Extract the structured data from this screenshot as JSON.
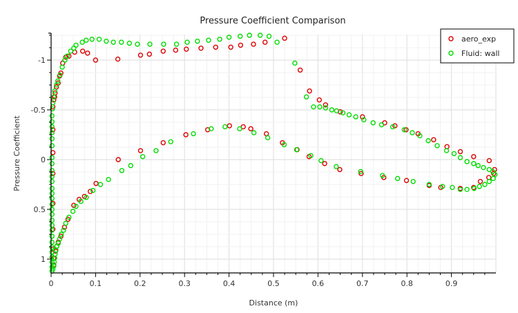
{
  "chart_data": {
    "type": "scatter",
    "title": "Pressure Coefficient Comparison",
    "xlabel": "Distance (m)",
    "ylabel": "Pressure Coefficient",
    "xlim": [
      0,
      1.0
    ],
    "ylim": [
      -1.257,
      1.139
    ],
    "y_inverted": true,
    "grid": true,
    "legend_position": "top-right",
    "x_ticks": [
      0,
      0.1,
      0.2,
      0.3,
      0.4,
      0.5,
      0.6,
      0.7,
      0.8,
      0.9
    ],
    "x_tick_labels": [
      "0",
      "0.1",
      "0.2",
      "0.3",
      "0.4",
      "0.5",
      "0.6",
      "0.7",
      "0.8",
      "0.9"
    ],
    "y_ticks": [
      -1,
      -0.5,
      0,
      0.5,
      1
    ],
    "y_tick_labels": [
      "-1",
      "-0.5",
      "0",
      "0.5",
      "1"
    ],
    "series": [
      {
        "name": "aero_exp",
        "color": "#dd0000",
        "marker": "open-circle",
        "points": [
          [
            0.006,
            1.06
          ],
          [
            0.006,
            0.99
          ],
          [
            0.01,
            0.92
          ],
          [
            0.013,
            0.87
          ],
          [
            0.016,
            0.83
          ],
          [
            0.022,
            0.77
          ],
          [
            0.03,
            0.68
          ],
          [
            0.038,
            0.6
          ],
          [
            0.051,
            0.46
          ],
          [
            0.063,
            0.4
          ],
          [
            0.075,
            0.37
          ],
          [
            0.088,
            0.32
          ],
          [
            0.101,
            0.24
          ],
          [
            0.151,
            0.0
          ],
          [
            0.201,
            -0.09
          ],
          [
            0.252,
            -0.17
          ],
          [
            0.303,
            -0.25
          ],
          [
            0.352,
            -0.3
          ],
          [
            0.401,
            -0.34
          ],
          [
            0.432,
            -0.33
          ],
          [
            0.449,
            -0.31
          ],
          [
            0.484,
            -0.26
          ],
          [
            0.52,
            -0.17
          ],
          [
            0.553,
            -0.1
          ],
          [
            0.58,
            -0.03
          ],
          [
            0.615,
            0.04
          ],
          [
            0.649,
            0.1
          ],
          [
            0.697,
            0.14
          ],
          [
            0.748,
            0.18
          ],
          [
            0.799,
            0.21
          ],
          [
            0.85,
            0.26
          ],
          [
            0.876,
            0.28
          ],
          [
            0.92,
            0.29
          ],
          [
            0.95,
            0.28
          ],
          [
            0.965,
            0.22
          ],
          [
            0.984,
            0.18
          ],
          [
            0.995,
            0.14
          ],
          [
            0.004,
            0.9
          ],
          [
            0.004,
            0.7
          ],
          [
            0.004,
            0.44
          ],
          [
            0.004,
            0.14
          ],
          [
            0.004,
            -0.07
          ],
          [
            0.004,
            -0.3
          ],
          [
            0.004,
            -0.53
          ],
          [
            0.006,
            -0.6
          ],
          [
            0.008,
            -0.63
          ],
          [
            0.009,
            -0.67
          ],
          [
            0.012,
            -0.73
          ],
          [
            0.016,
            -0.77
          ],
          [
            0.019,
            -0.84
          ],
          [
            0.022,
            -0.87
          ],
          [
            0.026,
            -0.97
          ],
          [
            0.033,
            -1.03
          ],
          [
            0.04,
            -1.04
          ],
          [
            0.053,
            -1.08
          ],
          [
            0.071,
            -1.09
          ],
          [
            0.082,
            -1.07
          ],
          [
            0.1,
            -1.0
          ],
          [
            0.15,
            -1.01
          ],
          [
            0.201,
            -1.05
          ],
          [
            0.221,
            -1.06
          ],
          [
            0.252,
            -1.09
          ],
          [
            0.28,
            -1.1
          ],
          [
            0.304,
            -1.11
          ],
          [
            0.337,
            -1.12
          ],
          [
            0.37,
            -1.13
          ],
          [
            0.404,
            -1.13
          ],
          [
            0.426,
            -1.15
          ],
          [
            0.455,
            -1.16
          ],
          [
            0.481,
            -1.18
          ],
          [
            0.525,
            -1.22
          ],
          [
            0.56,
            -0.9
          ],
          [
            0.581,
            -0.69
          ],
          [
            0.603,
            -0.6
          ],
          [
            0.617,
            -0.55
          ],
          [
            0.65,
            -0.48
          ],
          [
            0.7,
            -0.43
          ],
          [
            0.75,
            -0.37
          ],
          [
            0.773,
            -0.34
          ],
          [
            0.798,
            -0.3
          ],
          [
            0.825,
            -0.26
          ],
          [
            0.86,
            -0.2
          ],
          [
            0.89,
            -0.13
          ],
          [
            0.92,
            -0.08
          ],
          [
            0.95,
            -0.03
          ],
          [
            0.985,
            0.01
          ],
          [
            0.997,
            0.1
          ]
        ]
      },
      {
        "name": "Fluid: wall",
        "color": "#00dd00",
        "marker": "open-circle",
        "points": [
          [
            0.002,
            -0.02
          ],
          [
            0.002,
            0.04
          ],
          [
            0.002,
            0.11
          ],
          [
            0.002,
            0.17
          ],
          [
            0.002,
            0.22
          ],
          [
            0.002,
            0.29
          ],
          [
            0.002,
            0.34
          ],
          [
            0.002,
            0.39
          ],
          [
            0.002,
            0.45
          ],
          [
            0.002,
            0.5
          ],
          [
            0.002,
            0.55
          ],
          [
            0.002,
            0.61
          ],
          [
            0.002,
            0.66
          ],
          [
            0.002,
            0.71
          ],
          [
            0.002,
            0.77
          ],
          [
            0.002,
            0.83
          ],
          [
            0.002,
            0.88
          ],
          [
            0.002,
            0.93
          ],
          [
            0.002,
            0.98
          ],
          [
            0.002,
            1.03
          ],
          [
            0.002,
            1.08
          ],
          [
            0.002,
            1.12
          ],
          [
            0.004,
            1.1
          ],
          [
            0.006,
            1.07
          ],
          [
            0.007,
            1.03
          ],
          [
            0.008,
            0.99
          ],
          [
            0.009,
            0.95
          ],
          [
            0.011,
            0.91
          ],
          [
            0.013,
            0.87
          ],
          [
            0.016,
            0.84
          ],
          [
            0.019,
            0.8
          ],
          [
            0.023,
            0.75
          ],
          [
            0.028,
            0.71
          ],
          [
            0.033,
            0.64
          ],
          [
            0.04,
            0.58
          ],
          [
            0.049,
            0.52
          ],
          [
            0.056,
            0.47
          ],
          [
            0.067,
            0.42
          ],
          [
            0.079,
            0.38
          ],
          [
            0.094,
            0.31
          ],
          [
            0.111,
            0.25
          ],
          [
            0.129,
            0.2
          ],
          [
            0.159,
            0.11
          ],
          [
            0.179,
            0.06
          ],
          [
            0.206,
            -0.03
          ],
          [
            0.236,
            -0.09
          ],
          [
            0.269,
            -0.18
          ],
          [
            0.32,
            -0.26
          ],
          [
            0.36,
            -0.31
          ],
          [
            0.391,
            -0.33
          ],
          [
            0.424,
            -0.31
          ],
          [
            0.456,
            -0.27
          ],
          [
            0.487,
            -0.22
          ],
          [
            0.524,
            -0.15
          ],
          [
            0.552,
            -0.1
          ],
          [
            0.584,
            -0.04
          ],
          [
            0.607,
            0.01
          ],
          [
            0.641,
            0.07
          ],
          [
            0.696,
            0.12
          ],
          [
            0.745,
            0.16
          ],
          [
            0.779,
            0.19
          ],
          [
            0.814,
            0.22
          ],
          [
            0.85,
            0.25
          ],
          [
            0.88,
            0.27
          ],
          [
            0.902,
            0.28
          ],
          [
            0.92,
            0.3
          ],
          [
            0.935,
            0.3
          ],
          [
            0.951,
            0.29
          ],
          [
            0.963,
            0.27
          ],
          [
            0.975,
            0.25
          ],
          [
            0.985,
            0.22
          ],
          [
            0.994,
            0.19
          ],
          [
            0.998,
            0.15
          ],
          [
            0.002,
            -0.14
          ],
          [
            0.002,
            -0.21
          ],
          [
            0.002,
            -0.27
          ],
          [
            0.002,
            -0.33
          ],
          [
            0.002,
            -0.38
          ],
          [
            0.002,
            -0.44
          ],
          [
            0.003,
            -0.51
          ],
          [
            0.004,
            -0.57
          ],
          [
            0.006,
            -0.63
          ],
          [
            0.008,
            -0.69
          ],
          [
            0.012,
            -0.75
          ],
          [
            0.015,
            -0.79
          ],
          [
            0.02,
            -0.85
          ],
          [
            0.025,
            -0.93
          ],
          [
            0.031,
            -1.0
          ],
          [
            0.036,
            -1.04
          ],
          [
            0.044,
            -1.09
          ],
          [
            0.051,
            -1.12
          ],
          [
            0.056,
            -1.15
          ],
          [
            0.07,
            -1.18
          ],
          [
            0.079,
            -1.2
          ],
          [
            0.092,
            -1.21
          ],
          [
            0.108,
            -1.21
          ],
          [
            0.124,
            -1.19
          ],
          [
            0.14,
            -1.18
          ],
          [
            0.158,
            -1.18
          ],
          [
            0.176,
            -1.17
          ],
          [
            0.194,
            -1.16
          ],
          [
            0.222,
            -1.16
          ],
          [
            0.253,
            -1.16
          ],
          [
            0.282,
            -1.16
          ],
          [
            0.306,
            -1.18
          ],
          [
            0.329,
            -1.19
          ],
          [
            0.354,
            -1.2
          ],
          [
            0.379,
            -1.21
          ],
          [
            0.4,
            -1.23
          ],
          [
            0.425,
            -1.24
          ],
          [
            0.446,
            -1.25
          ],
          [
            0.47,
            -1.25
          ],
          [
            0.49,
            -1.24
          ],
          [
            0.508,
            -1.18
          ],
          [
            0.548,
            -0.97
          ],
          [
            0.574,
            -0.63
          ],
          [
            0.59,
            -0.53
          ],
          [
            0.604,
            -0.53
          ],
          [
            0.617,
            -0.52
          ],
          [
            0.631,
            -0.5
          ],
          [
            0.642,
            -0.49
          ],
          [
            0.656,
            -0.47
          ],
          [
            0.67,
            -0.45
          ],
          [
            0.685,
            -0.43
          ],
          [
            0.703,
            -0.4
          ],
          [
            0.724,
            -0.37
          ],
          [
            0.743,
            -0.35
          ],
          [
            0.768,
            -0.33
          ],
          [
            0.794,
            -0.3
          ],
          [
            0.812,
            -0.27
          ],
          [
            0.829,
            -0.24
          ],
          [
            0.848,
            -0.19
          ],
          [
            0.868,
            -0.14
          ],
          [
            0.889,
            -0.09
          ],
          [
            0.906,
            -0.06
          ],
          [
            0.92,
            -0.02
          ],
          [
            0.935,
            0.02
          ],
          [
            0.95,
            0.04
          ],
          [
            0.96,
            0.06
          ],
          [
            0.972,
            0.08
          ],
          [
            0.985,
            0.1
          ],
          [
            0.993,
            0.12
          ]
        ]
      }
    ]
  }
}
